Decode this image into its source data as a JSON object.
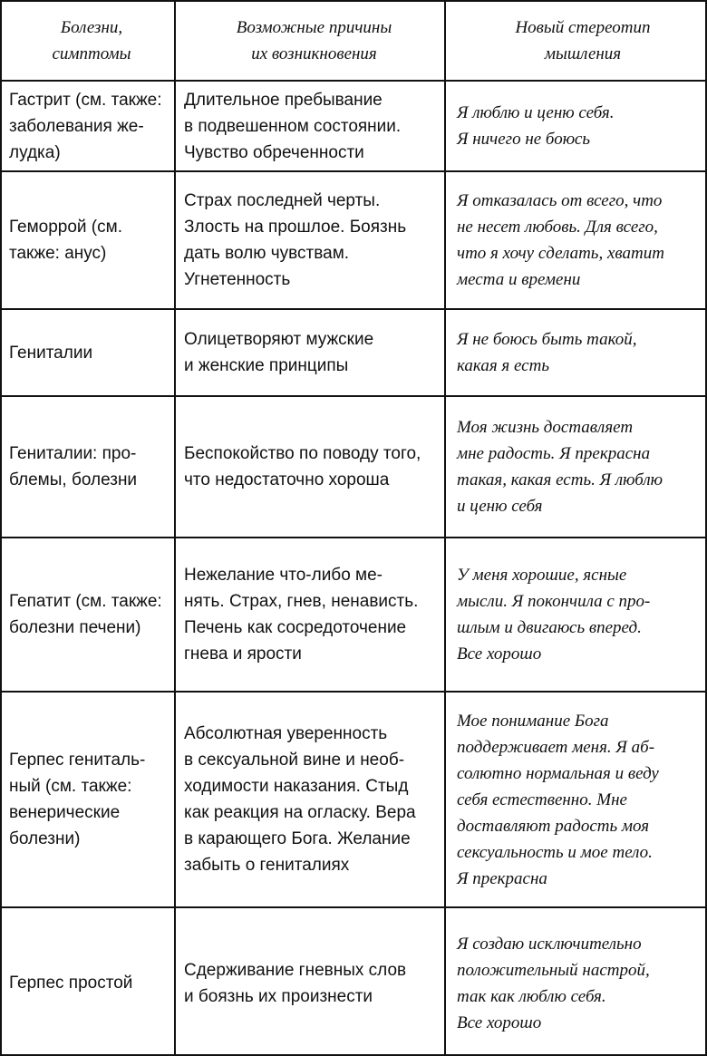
{
  "table": {
    "header": [
      [
        "Болезни,",
        "симптомы"
      ],
      [
        "Возможные причины",
        "их возникновения"
      ],
      [
        "Новый стереотип",
        "мышления"
      ]
    ],
    "rows": [
      [
        [
          "Гастрит (см. также:",
          "заболевания же-",
          "лудка)"
        ],
        [
          "Длительное пребывание",
          "в подвешенном состоянии.",
          "Чувство обреченности"
        ],
        [
          "Я люблю и ценю себя.",
          "Я ничего не боюсь"
        ]
      ],
      [
        [
          "Геморрой (см.",
          "также: анус)"
        ],
        [
          "Страх последней черты.",
          "Злость на прошлое. Боязнь",
          "дать волю чувствам.",
          "Угнетенность"
        ],
        [
          "Я отказалась от всего, что",
          "не несет любовь. Для всего,",
          "что я хочу сделать, хватит",
          "места и времени"
        ]
      ],
      [
        [
          "Гениталии"
        ],
        [
          "Олицетворяют мужские",
          "и женские принципы"
        ],
        [
          "Я не боюсь быть такой,",
          "какая я есть"
        ]
      ],
      [
        [
          "Гениталии: про-",
          "блемы, болезни"
        ],
        [
          "Беспокойство по поводу того,",
          "что недостаточно хороша"
        ],
        [
          "Моя жизнь доставляет",
          "мне радость. Я прекрасна",
          "такая, какая есть. Я люблю",
          "и ценю себя"
        ]
      ],
      [
        [
          "Гепатит (см. также:",
          "болезни печени)"
        ],
        [
          "Нежелание что-либо ме-",
          "нять. Страх, гнев, ненависть.",
          "Печень как сосредоточение",
          "гнева и ярости"
        ],
        [
          "У меня хорошие, ясные",
          "мысли. Я покончила с про-",
          "шлым и двигаюсь вперед.",
          "Все хорошо"
        ]
      ],
      [
        [
          "Герпес гениталь-",
          "ный (см. также:",
          "венерические",
          "болезни)"
        ],
        [
          "Абсолютная уверенность",
          "в сексуальной вине и необ-",
          "ходимости наказания. Стыд",
          "как реакция на огласку. Вера",
          "в карающего Бога. Желание",
          "забыть о гениталиях"
        ],
        [
          "Мое понимание Бога",
          "поддерживает меня. Я аб-",
          "солютно нормальная и веду",
          "себя естественно. Мне",
          "доставляют радость моя",
          "сексуальность и мое тело.",
          "Я прекрасна"
        ]
      ],
      [
        [
          "Герпес простой"
        ],
        [
          "Сдерживание гневных слов",
          "и боязнь их произнести"
        ],
        [
          "Я создаю исключительно",
          "положительный настрой,",
          "так как люблю себя.",
          "Все хорошо"
        ]
      ]
    ]
  }
}
